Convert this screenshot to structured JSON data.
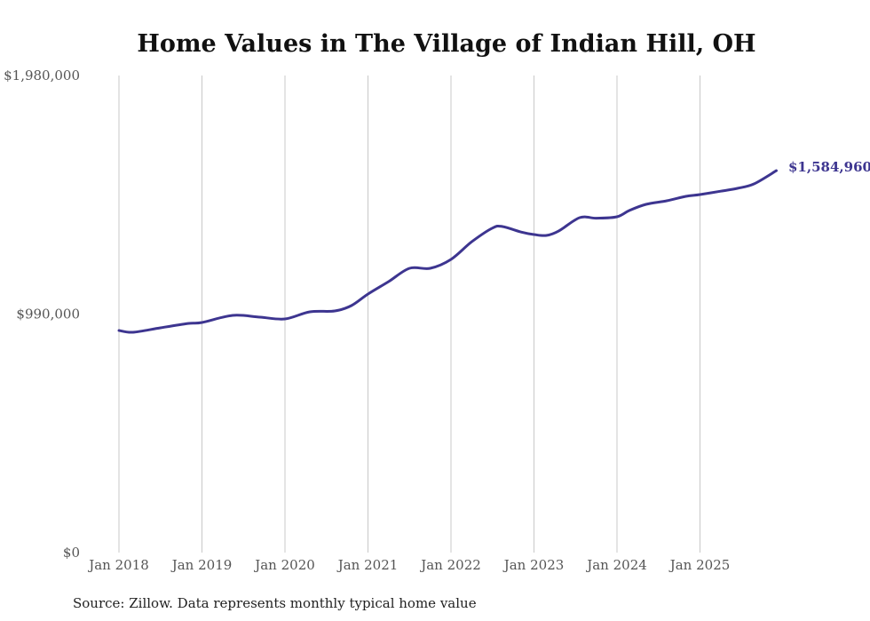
{
  "chart_data": {
    "type": "line",
    "title": "Home Values in The Village of Indian Hill, OH",
    "xlabel": "",
    "ylabel": "",
    "source": "Source: Zillow. Data represents monthly typical home value",
    "ylim": [
      0,
      1980000
    ],
    "y_ticks": [
      {
        "value": 0,
        "label": "$0"
      },
      {
        "value": 990000,
        "label": "$990,000"
      },
      {
        "value": 1980000,
        "label": "$1,980,000"
      }
    ],
    "x_range": [
      2018.0,
      2025.92
    ],
    "x_ticks": [
      {
        "value": 2018,
        "label": "Jan 2018"
      },
      {
        "value": 2019,
        "label": "Jan 2019"
      },
      {
        "value": 2020,
        "label": "Jan 2020"
      },
      {
        "value": 2021,
        "label": "Jan 2021"
      },
      {
        "value": 2022,
        "label": "Jan 2022"
      },
      {
        "value": 2023,
        "label": "Jan 2023"
      },
      {
        "value": 2024,
        "label": "Jan 2024"
      },
      {
        "value": 2025,
        "label": "Jan 2025"
      }
    ],
    "grid": "vertical",
    "line_color": "#3d3590",
    "series": [
      {
        "name": "Typical home value",
        "x": [
          2018.0,
          2018.17,
          2018.5,
          2018.83,
          2019.0,
          2019.37,
          2019.7,
          2020.0,
          2020.3,
          2020.6,
          2020.8,
          2021.0,
          2021.25,
          2021.5,
          2021.75,
          2022.0,
          2022.25,
          2022.5,
          2022.62,
          2022.85,
          2023.0,
          2023.15,
          2023.3,
          2023.55,
          2023.75,
          2024.0,
          2024.15,
          2024.35,
          2024.6,
          2024.83,
          2025.0,
          2025.25,
          2025.45,
          2025.65,
          2025.92
        ],
        "values": [
          921800,
          914400,
          933000,
          951000,
          955000,
          984400,
          977000,
          969700,
          999200,
          1002900,
          1025000,
          1072900,
          1125000,
          1179900,
          1179900,
          1216800,
          1290000,
          1347000,
          1353200,
          1330000,
          1320000,
          1316300,
          1335000,
          1390100,
          1388000,
          1393700,
          1420000,
          1445400,
          1460000,
          1478500,
          1485900,
          1500000,
          1511700,
          1530200,
          1584960
        ]
      }
    ],
    "end_label": "$1,584,960"
  }
}
